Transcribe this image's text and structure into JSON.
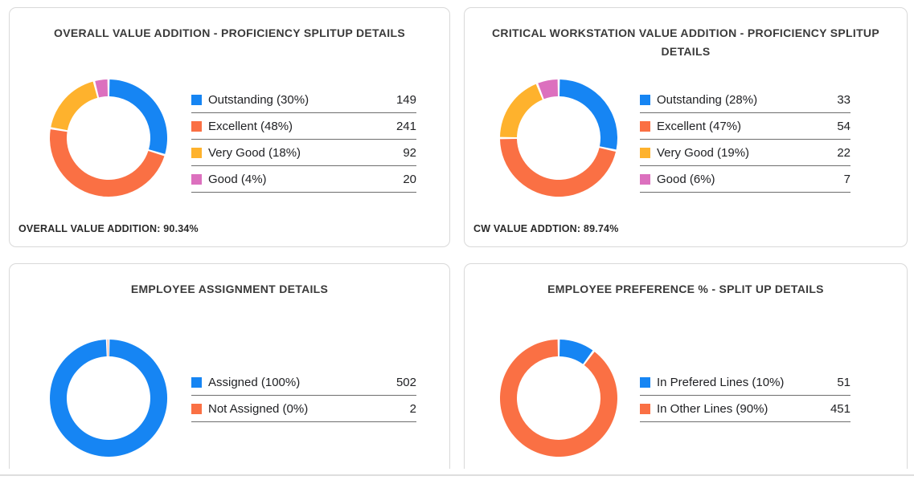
{
  "palette": {
    "blue": "#1685f3",
    "orange": "#fa7044",
    "yellow": "#feb22d",
    "pink": "#dc70be",
    "card_border": "#d9d9d9",
    "legend_divider": "#6e6e6e",
    "text": "#202124",
    "title_text": "#3a3a3a"
  },
  "chart_data": [
    {
      "type": "pie",
      "subtype": "donut",
      "title": "OVERALL VALUE ADDITION - PROFICIENCY SPLITUP DETAILS",
      "footer": "OVERALL VALUE ADDITION: 90.34%",
      "legend_position": "right",
      "segments": [
        {
          "label": "Outstanding",
          "pct": 30,
          "value": 149,
          "color": "#1685f3"
        },
        {
          "label": "Excellent",
          "pct": 48,
          "value": 241,
          "color": "#fa7044"
        },
        {
          "label": "Very Good",
          "pct": 18,
          "value": 92,
          "color": "#feb22d"
        },
        {
          "label": "Good",
          "pct": 4,
          "value": 20,
          "color": "#dc70be"
        }
      ]
    },
    {
      "type": "pie",
      "subtype": "donut",
      "title": "CRITICAL WORKSTATION VALUE ADDITION - PROFICIENCY SPLITUP DETAILS",
      "footer": "CW VALUE ADDTION: 89.74%",
      "legend_position": "right",
      "segments": [
        {
          "label": "Outstanding",
          "pct": 28,
          "value": 33,
          "color": "#1685f3"
        },
        {
          "label": "Excellent",
          "pct": 47,
          "value": 54,
          "color": "#fa7044"
        },
        {
          "label": "Very Good",
          "pct": 19,
          "value": 22,
          "color": "#feb22d"
        },
        {
          "label": "Good",
          "pct": 6,
          "value": 7,
          "color": "#dc70be"
        }
      ]
    },
    {
      "type": "pie",
      "subtype": "donut",
      "title": "EMPLOYEE ASSIGNMENT DETAILS",
      "legend_position": "right",
      "segments": [
        {
          "label": "Assigned",
          "pct": 100,
          "value": 502,
          "color": "#1685f3"
        },
        {
          "label": "Not Assigned",
          "pct": 0,
          "value": 2,
          "color": "#fa7044"
        }
      ]
    },
    {
      "type": "pie",
      "subtype": "donut",
      "title": "EMPLOYEE PREFERENCE % - SPLIT UP DETAILS",
      "legend_position": "right",
      "segments": [
        {
          "label": "In Prefered Lines",
          "pct": 10,
          "value": 51,
          "color": "#1685f3"
        },
        {
          "label": "In Other Lines",
          "pct": 90,
          "value": 451,
          "color": "#fa7044"
        }
      ]
    }
  ]
}
